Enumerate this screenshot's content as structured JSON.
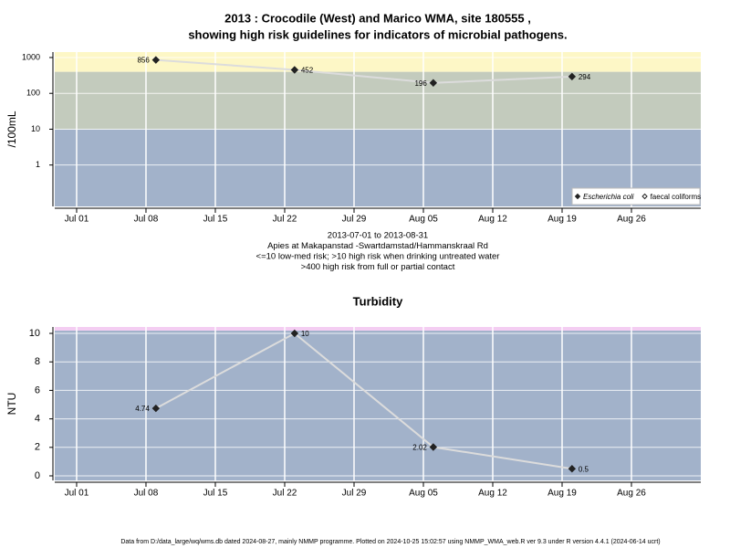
{
  "title_lines": [
    "2013 : Crocodile (West) and Marico WMA, site 180555 ,",
    "showing high risk guidelines for indicators of microbial pathogens."
  ],
  "footer": "Data from D:/data_large/wq/wms.db dated 2024-08-27, mainly NMMP programme. Plotted on 2024-10-25 15:02:57 using NMMP_WMA_web.R ver 9.3 under R version 4.4.1 (2024-06-14 ucrt)",
  "chart_data": [
    {
      "type": "line",
      "ylabel": "/100mL",
      "log_y": true,
      "grid": true,
      "x": [
        "2013-07-09",
        "2013-07-23",
        "2013-08-06",
        "2013-08-20"
      ],
      "xlim": [
        "2013-06-28T19:00",
        "2013-09-02T00:00"
      ],
      "xticks": [
        {
          "value": "2013-07-01",
          "label": "Jul 01"
        },
        {
          "value": "2013-07-08",
          "label": "Jul 08"
        },
        {
          "value": "2013-07-15",
          "label": "Jul 15"
        },
        {
          "value": "2013-07-22",
          "label": "Jul 22"
        },
        {
          "value": "2013-07-29",
          "label": "Jul 29"
        },
        {
          "value": "2013-08-05",
          "label": "Aug 05"
        },
        {
          "value": "2013-08-12",
          "label": "Aug 12"
        },
        {
          "value": "2013-08-19",
          "label": "Aug 19"
        },
        {
          "value": "2013-08-26",
          "label": "Aug 26"
        }
      ],
      "ylim": [
        0.07,
        1420
      ],
      "yticks": [
        1,
        10,
        100,
        1000
      ],
      "thresholds": [
        10,
        400
      ],
      "band_colors": [
        "#a2b2ca",
        "#c3cbbd",
        "#fdf7c6"
      ],
      "line_color": "#dcdcdc",
      "series": [
        {
          "name": "Escherichia coli",
          "color": "#222222",
          "marker": "diamond",
          "values": [
            856,
            452,
            196,
            294
          ]
        },
        {
          "name": "faecal coliforms",
          "color": "#222222",
          "marker": "open-diamond",
          "values": [
            null,
            null,
            null,
            null
          ]
        }
      ],
      "legend": "bottom right",
      "notes": [
        "2013-07-01 to 2013-08-31",
        "Apies at Makapanstad -Swartdamstad/Hammanskraal Rd",
        "<=10 low-med risk; >10 high risk when drinking untreated water",
        ">400 high risk from full or partial contact"
      ]
    },
    {
      "type": "line",
      "title": "Turbidity",
      "ylabel": "NTU",
      "log_y": false,
      "grid": true,
      "x": [
        "2013-07-09",
        "2013-07-23",
        "2013-08-06",
        "2013-08-20"
      ],
      "xlim": [
        "2013-06-28T19:00",
        "2013-09-02T00:00"
      ],
      "xticks": [
        {
          "value": "2013-07-01",
          "label": "Jul 01"
        },
        {
          "value": "2013-07-08",
          "label": "Jul 08"
        },
        {
          "value": "2013-07-15",
          "label": "Jul 15"
        },
        {
          "value": "2013-07-22",
          "label": "Jul 22"
        },
        {
          "value": "2013-07-29",
          "label": "Jul 29"
        },
        {
          "value": "2013-08-05",
          "label": "Aug 05"
        },
        {
          "value": "2013-08-12",
          "label": "Aug 12"
        },
        {
          "value": "2013-08-19",
          "label": "Aug 19"
        },
        {
          "value": "2013-08-26",
          "label": "Aug 26"
        }
      ],
      "ylim": [
        -0.32,
        10.45
      ],
      "yticks": [
        0,
        2,
        4,
        6,
        8,
        10
      ],
      "thresholds": [
        10.2
      ],
      "band_colors": [
        "#a2b2ca",
        "#f4cdf2"
      ],
      "line_color": "#dcdcdc",
      "series": [
        {
          "name": "Turbidity",
          "color": "#222222",
          "marker": "diamond",
          "values": [
            4.74,
            10,
            2.02,
            0.5
          ]
        }
      ]
    }
  ]
}
